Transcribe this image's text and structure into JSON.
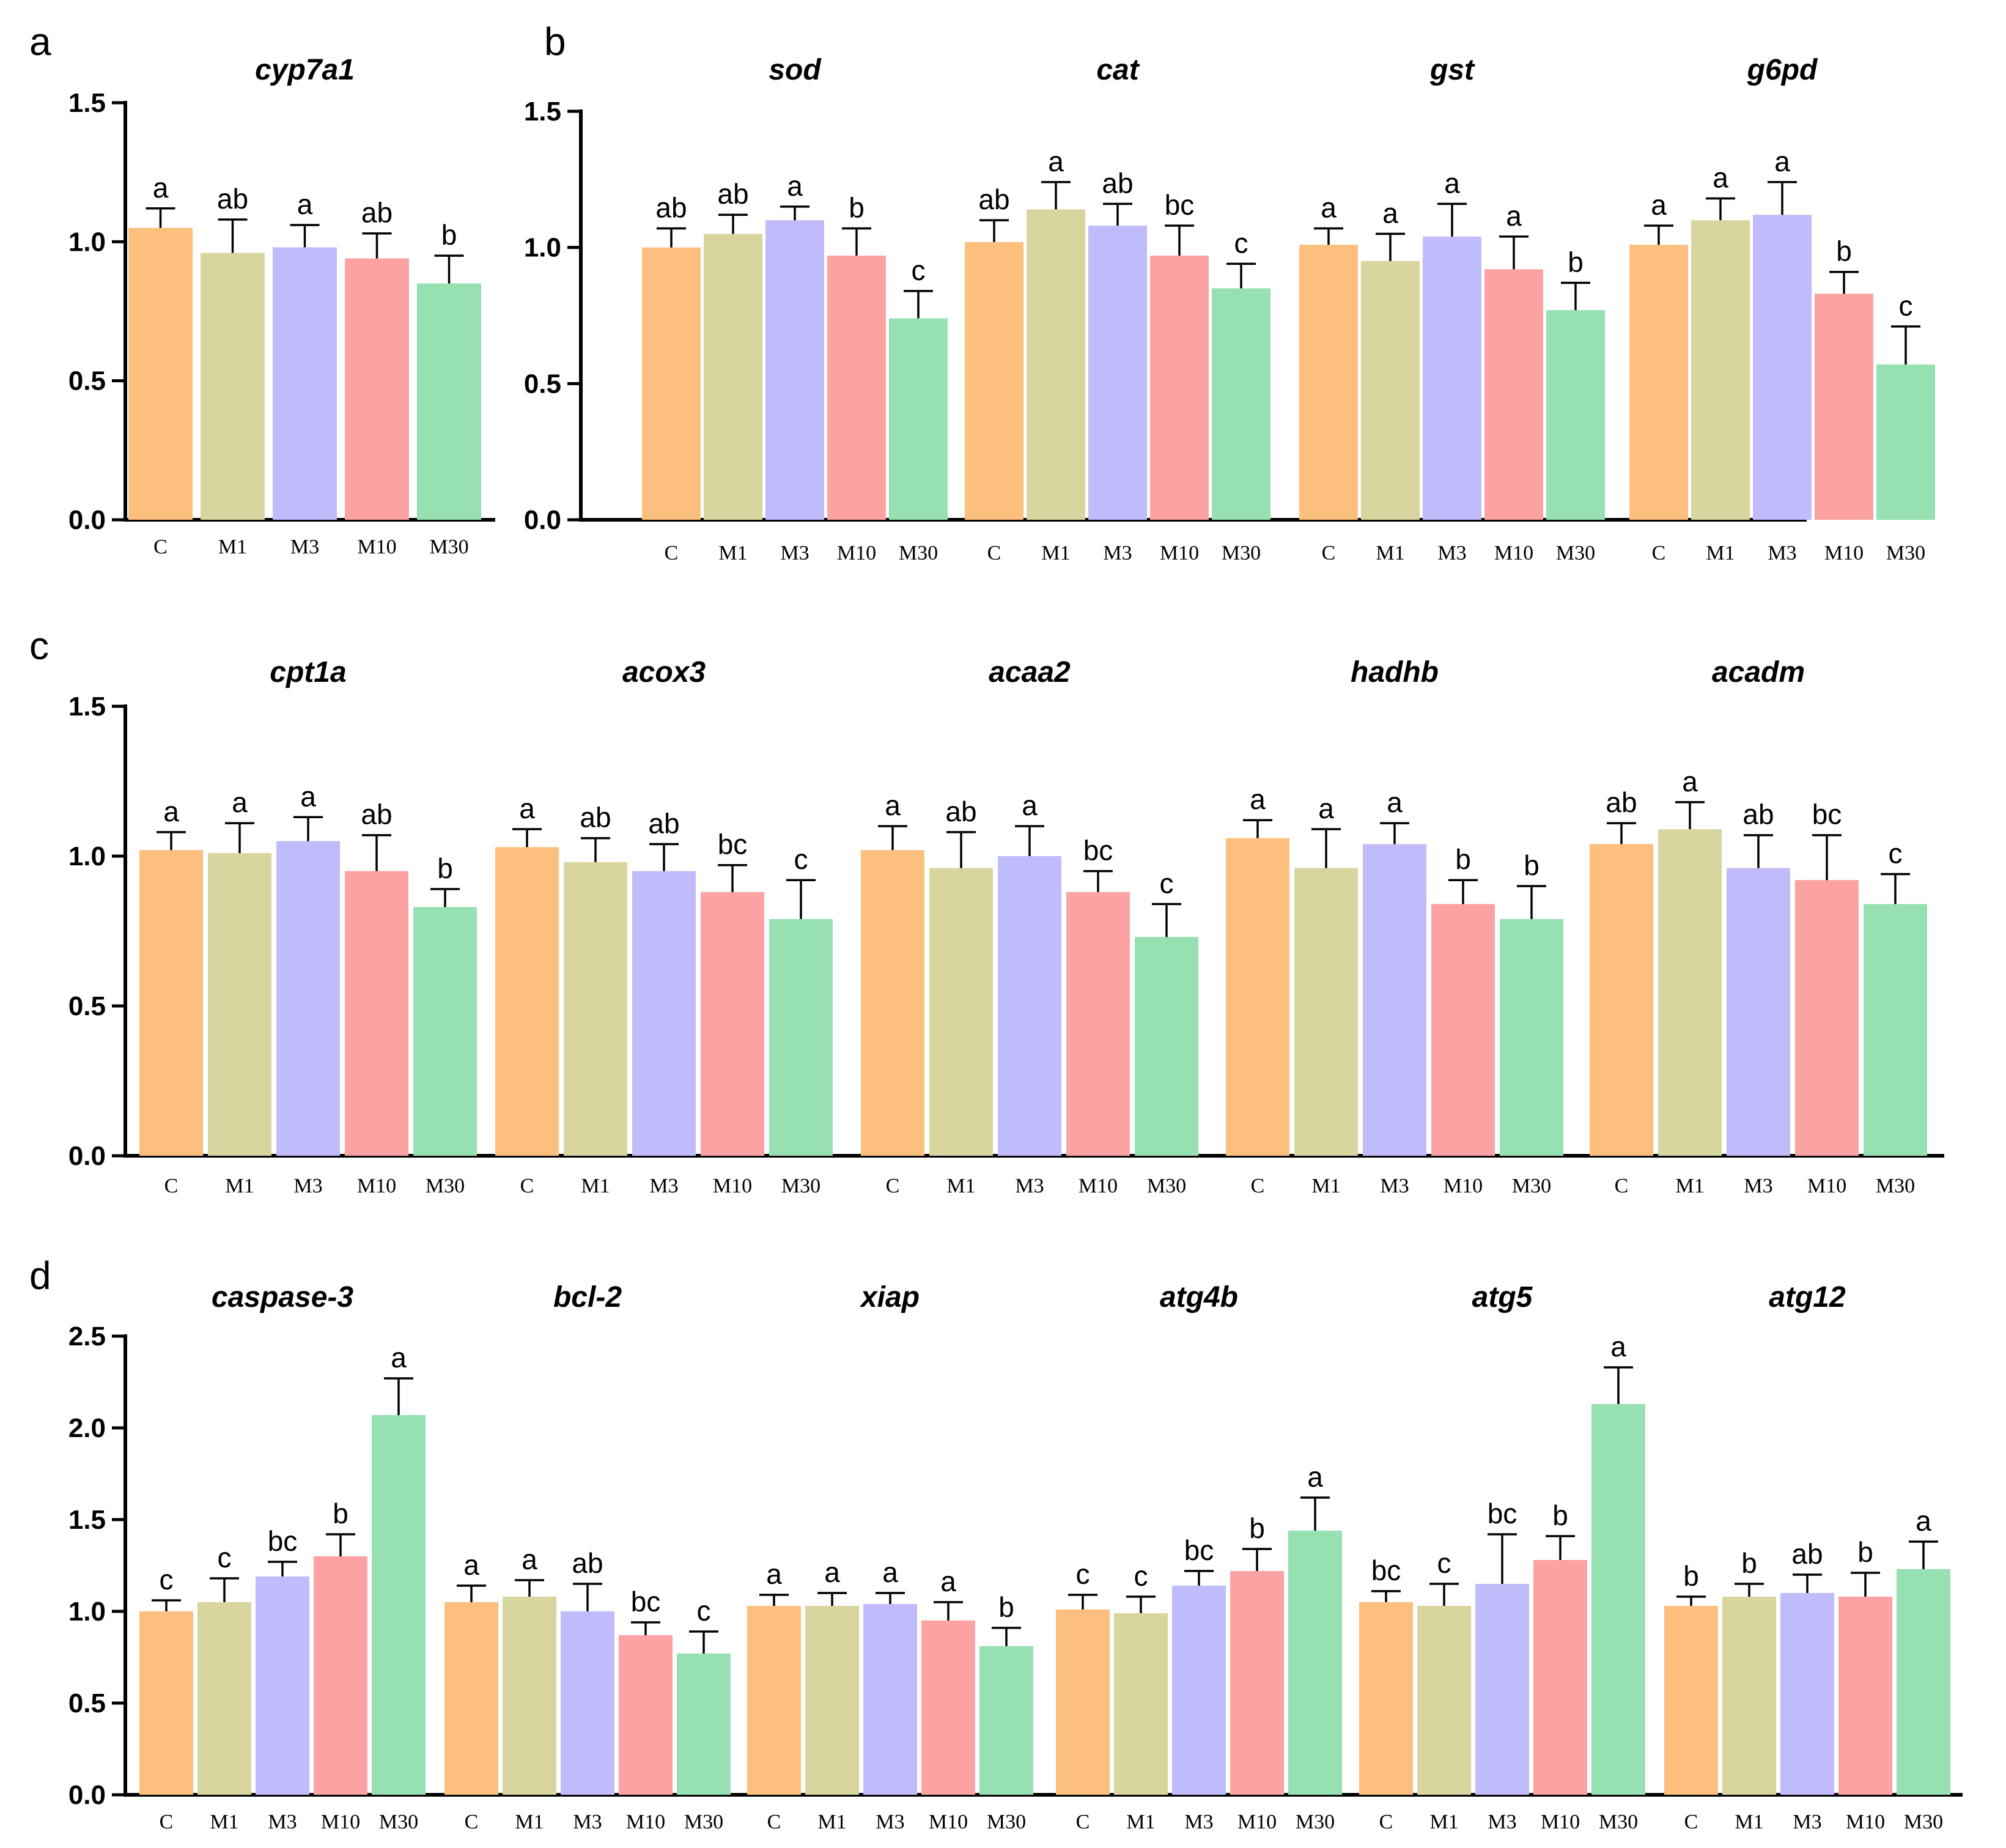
{
  "group_labels": [
    "C",
    "M1",
    "M3",
    "M10",
    "M30"
  ],
  "group_colors": [
    "#fcbf7d",
    "#d9d59e",
    "#c0bcfb",
    "#fca2a2",
    "#96e0b1"
  ],
  "chart_data": [
    {
      "panel": "a",
      "type": "bar",
      "ylim": [
        0,
        1.5
      ],
      "yticks": [
        "0.0",
        "0.5",
        "1.0",
        "1.5"
      ],
      "genes": [
        {
          "name": "cyp7a1",
          "values": [
            1.05,
            0.96,
            0.98,
            0.94,
            0.85
          ],
          "errors": [
            0.07,
            0.12,
            0.08,
            0.09,
            0.1
          ],
          "letters": [
            "a",
            "ab",
            "a",
            "ab",
            "b"
          ]
        }
      ]
    },
    {
      "panel": "b",
      "type": "bar",
      "ylim": [
        0,
        1.5
      ],
      "yticks": [
        "0.0",
        "0.5",
        "1.0",
        "1.5"
      ],
      "genes": [
        {
          "name": "sod",
          "values": [
            1.0,
            1.05,
            1.1,
            0.97,
            0.74
          ],
          "errors": [
            0.07,
            0.07,
            0.05,
            0.1,
            0.1
          ],
          "letters": [
            "ab",
            "ab",
            "a",
            "b",
            "c"
          ]
        },
        {
          "name": "cat",
          "values": [
            1.02,
            1.14,
            1.08,
            0.97,
            0.85
          ],
          "errors": [
            0.08,
            0.1,
            0.08,
            0.11,
            0.09
          ],
          "letters": [
            "ab",
            "a",
            "ab",
            "bc",
            "c"
          ]
        },
        {
          "name": "gst",
          "values": [
            1.01,
            0.95,
            1.04,
            0.92,
            0.77
          ],
          "errors": [
            0.06,
            0.1,
            0.12,
            0.12,
            0.1
          ],
          "letters": [
            "a",
            "a",
            "a",
            "a",
            "b"
          ]
        },
        {
          "name": "g6pd",
          "values": [
            1.01,
            1.1,
            1.12,
            0.83,
            0.57
          ],
          "errors": [
            0.07,
            0.08,
            0.12,
            0.08,
            0.14
          ],
          "letters": [
            "a",
            "a",
            "a",
            "b",
            "c"
          ]
        }
      ]
    },
    {
      "panel": "c",
      "type": "bar",
      "ylim": [
        0,
        1.5
      ],
      "yticks": [
        "0.0",
        "0.5",
        "1.0",
        "1.5"
      ],
      "genes": [
        {
          "name": "cpt1a",
          "values": [
            1.02,
            1.01,
            1.05,
            0.95,
            0.83
          ],
          "errors": [
            0.06,
            0.1,
            0.08,
            0.12,
            0.06
          ],
          "letters": [
            "a",
            "a",
            "a",
            "ab",
            "b"
          ]
        },
        {
          "name": "acox3",
          "values": [
            1.03,
            0.98,
            0.95,
            0.88,
            0.79
          ],
          "errors": [
            0.06,
            0.08,
            0.09,
            0.09,
            0.13
          ],
          "letters": [
            "a",
            "ab",
            "ab",
            "bc",
            "c"
          ]
        },
        {
          "name": "acaa2",
          "values": [
            1.02,
            0.96,
            1.0,
            0.88,
            0.73
          ],
          "errors": [
            0.08,
            0.12,
            0.1,
            0.07,
            0.11
          ],
          "letters": [
            "a",
            "ab",
            "a",
            "bc",
            "c"
          ]
        },
        {
          "name": "hadhb",
          "values": [
            1.06,
            0.96,
            1.04,
            0.84,
            0.79
          ],
          "errors": [
            0.06,
            0.13,
            0.07,
            0.08,
            0.11
          ],
          "letters": [
            "a",
            "a",
            "a",
            "b",
            "b"
          ]
        },
        {
          "name": "acadm",
          "values": [
            1.04,
            1.09,
            0.96,
            0.92,
            0.84
          ],
          "errors": [
            0.07,
            0.09,
            0.11,
            0.15,
            0.1
          ],
          "letters": [
            "ab",
            "a",
            "ab",
            "bc",
            "c"
          ]
        }
      ]
    },
    {
      "panel": "d",
      "type": "bar",
      "ylim": [
        0,
        2.5
      ],
      "yticks": [
        "0.0",
        "0.5",
        "1.0",
        "1.5",
        "2.0",
        "2.5"
      ],
      "genes": [
        {
          "name": "caspase-3",
          "values": [
            1.0,
            1.05,
            1.19,
            1.3,
            2.07
          ],
          "errors": [
            0.06,
            0.13,
            0.08,
            0.12,
            0.2
          ],
          "letters": [
            "c",
            "c",
            "bc",
            "b",
            "a"
          ]
        },
        {
          "name": "bcl-2",
          "values": [
            1.05,
            1.08,
            1.0,
            0.87,
            0.77
          ],
          "errors": [
            0.09,
            0.09,
            0.15,
            0.07,
            0.12
          ],
          "letters": [
            "a",
            "a",
            "ab",
            "bc",
            "c"
          ]
        },
        {
          "name": "xiap",
          "values": [
            1.03,
            1.03,
            1.04,
            0.95,
            0.81
          ],
          "errors": [
            0.06,
            0.07,
            0.06,
            0.1,
            0.1
          ],
          "letters": [
            "a",
            "a",
            "a",
            "a",
            "b"
          ]
        },
        {
          "name": "atg4b",
          "values": [
            1.01,
            0.99,
            1.14,
            1.22,
            1.44
          ],
          "errors": [
            0.08,
            0.09,
            0.08,
            0.12,
            0.18
          ],
          "letters": [
            "c",
            "c",
            "bc",
            "b",
            "a"
          ]
        },
        {
          "name": "atg5",
          "values": [
            1.05,
            1.03,
            1.15,
            1.28,
            2.13
          ],
          "errors": [
            0.06,
            0.12,
            0.27,
            0.13,
            0.2
          ],
          "letters": [
            "bc",
            "c",
            "bc",
            "b",
            "a"
          ]
        },
        {
          "name": "atg12",
          "values": [
            1.03,
            1.08,
            1.1,
            1.08,
            1.23
          ],
          "errors": [
            0.05,
            0.07,
            0.1,
            0.13,
            0.15
          ],
          "letters": [
            "b",
            "b",
            "ab",
            "b",
            "a"
          ]
        }
      ]
    }
  ]
}
